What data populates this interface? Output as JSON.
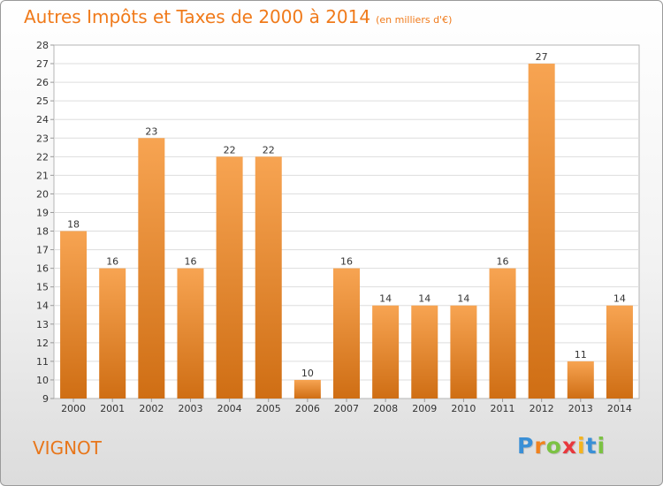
{
  "title": "Autres Impôts et Taxes de 2000 à 2014",
  "unit_label": "(en milliers d'€)",
  "commune": "VIGNOT",
  "logo": {
    "letters": [
      "P",
      "r",
      "o",
      "x",
      "i",
      "t",
      "i"
    ],
    "colors": [
      "#3a8fd6",
      "#f0821e",
      "#7cc243",
      "#e8383d",
      "#f5b41e",
      "#3a8fd6",
      "#7cc243"
    ]
  },
  "chart_data": {
    "type": "bar",
    "title": "Autres Impôts et Taxes de 2000 à 2014",
    "subtitle": "(en milliers d'€)",
    "xlabel": "",
    "ylabel": "",
    "categories": [
      "2000",
      "2001",
      "2002",
      "2003",
      "2004",
      "2005",
      "2006",
      "2007",
      "2008",
      "2009",
      "2010",
      "2011",
      "2012",
      "2013",
      "2014"
    ],
    "values": [
      18,
      16,
      23,
      16,
      22,
      22,
      10,
      16,
      14,
      14,
      14,
      16,
      27,
      11,
      14
    ],
    "ylim": [
      9,
      28
    ],
    "yticks": [
      9,
      10,
      11,
      12,
      13,
      14,
      15,
      16,
      17,
      18,
      19,
      20,
      21,
      22,
      23,
      24,
      25,
      26,
      27,
      28
    ],
    "grid": true,
    "bar_color_top": "#f7a452",
    "bar_color_bottom": "#cf6e14"
  }
}
